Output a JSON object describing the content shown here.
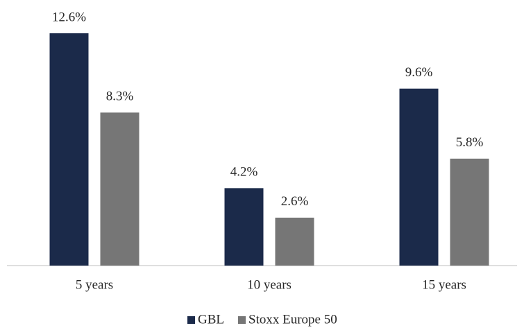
{
  "chart_data": {
    "type": "bar",
    "categories": [
      "5 years",
      "10 years",
      "15 years"
    ],
    "series": [
      {
        "name": "GBL",
        "color": "#1b2a4a",
        "values": [
          12.6,
          4.2,
          9.6
        ],
        "value_labels": [
          "12.6%",
          "4.2%",
          "9.6%"
        ]
      },
      {
        "name": "Stoxx Europe 50",
        "color": "#767676",
        "values": [
          8.3,
          2.6,
          5.8
        ],
        "value_labels": [
          "8.3%",
          "2.6%",
          "5.8%"
        ]
      }
    ],
    "legend": "bottom"
  }
}
